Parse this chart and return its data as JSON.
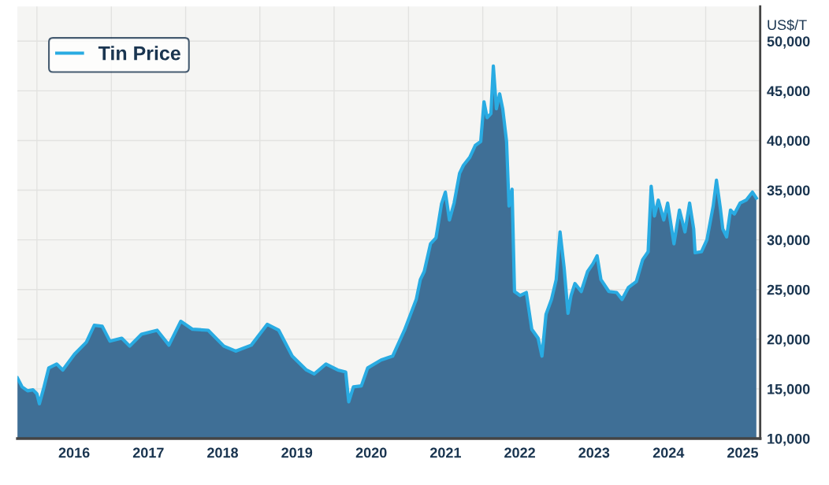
{
  "chart_data": {
    "type": "area",
    "x": [
      "2015-09-27",
      "2015-10-20",
      "2015-11-16",
      "2015-12-13",
      "2016-01-01",
      "2016-01-13",
      "2016-02-01",
      "2016-02-28",
      "2016-04-07",
      "2016-05-07",
      "2016-07-04",
      "2016-08-31",
      "2016-10-09",
      "2016-11-17",
      "2016-12-25",
      "2017-02-21",
      "2017-04-01",
      "2017-05-29",
      "2017-08-14",
      "2017-10-11",
      "2017-12-08",
      "2018-02-04",
      "2018-04-22",
      "2018-07-08",
      "2018-09-04",
      "2018-11-20",
      "2019-02-06",
      "2019-04-04",
      "2019-06-09",
      "2019-08-18",
      "2019-09-25",
      "2019-11-22",
      "2020-01-19",
      "2020-02-27",
      "2020-03-13",
      "2020-04-05",
      "2020-05-14",
      "2020-06-14",
      "2020-08-19",
      "2020-10-15",
      "2020-12-12",
      "2021-02-08",
      "2021-02-28",
      "2021-03-19",
      "2021-04-19",
      "2021-05-16",
      "2021-06-12",
      "2021-07-01",
      "2021-07-21",
      "2021-08-13",
      "2021-09-09",
      "2021-09-28",
      "2021-10-29",
      "2021-11-25",
      "2021-12-22",
      "2022-01-07",
      "2022-01-22",
      "2022-02-10",
      "2022-02-22",
      "2022-03-09",
      "2022-03-25",
      "2022-04-09",
      "2022-04-28",
      "2022-05-10",
      "2022-05-25",
      "2022-06-06",
      "2022-07-03",
      "2022-08-03",
      "2022-08-30",
      "2022-09-30",
      "2022-10-19",
      "2022-11-08",
      "2022-12-05",
      "2022-12-28",
      "2023-01-16",
      "2023-02-05",
      "2023-02-24",
      "2023-03-11",
      "2023-03-30",
      "2023-04-30",
      "2023-05-31",
      "2023-06-27",
      "2023-07-17",
      "2023-08-05",
      "2023-09-13",
      "2023-10-21",
      "2023-11-17",
      "2023-12-18",
      "2024-01-26",
      "2024-02-26",
      "2024-03-24",
      "2024-04-08",
      "2024-04-24",
      "2024-05-13",
      "2024-06-09",
      "2024-06-28",
      "2024-07-29",
      "2024-08-25",
      "2024-09-21",
      "2024-10-14",
      "2024-11-03",
      "2024-11-10",
      "2024-12-11",
      "2025-01-07",
      "2025-02-07",
      "2025-02-23",
      "2025-03-14",
      "2025-03-26",
      "2025-04-14",
      "2025-05-03",
      "2025-05-22",
      "2025-06-19",
      "2025-07-19",
      "2025-08-19",
      "2025-09-07"
    ],
    "series": [
      {
        "name": "Tin Price",
        "color": "#29abe2",
        "values": [
          16100,
          15200,
          14800,
          14900,
          14500,
          13500,
          14900,
          17100,
          17500,
          16900,
          18500,
          19700,
          21400,
          21300,
          19800,
          20100,
          19300,
          20500,
          20900,
          19400,
          21800,
          21000,
          20900,
          19300,
          18800,
          19400,
          21500,
          20900,
          18300,
          16900,
          16500,
          17500,
          16900,
          16700,
          13700,
          15200,
          15300,
          17100,
          17900,
          18300,
          20900,
          24000,
          26000,
          26800,
          29600,
          30200,
          33600,
          34800,
          32000,
          33700,
          36700,
          37500,
          38300,
          39500,
          39900,
          43900,
          42300,
          42700,
          47500,
          43200,
          44700,
          43200,
          39900,
          33400,
          35100,
          24800,
          24400,
          24700,
          21000,
          20100,
          18300,
          22500,
          24000,
          26000,
          30800,
          27200,
          22600,
          24400,
          25600,
          24800,
          26800,
          27600,
          28400,
          26000,
          24800,
          24700,
          24000,
          25200,
          25800,
          28000,
          28800,
          35400,
          32400,
          34000,
          32000,
          33700,
          29600,
          33000,
          30800,
          33700,
          31100,
          28700,
          28800,
          30000,
          33400,
          36000,
          33200,
          31100,
          30300,
          33000,
          32600,
          33700,
          34000,
          34800,
          34200
        ]
      }
    ],
    "ylabel": "US$/T",
    "xlim": [
      "2015-09-27",
      "2025-09-26"
    ],
    "xticks": [
      {
        "value": "2016-01-01",
        "label": null
      },
      {
        "value": "2016-07-02",
        "label": "2016"
      },
      {
        "value": "2017-01-01",
        "label": null
      },
      {
        "value": "2017-07-02",
        "label": "2017"
      },
      {
        "value": "2018-01-01",
        "label": null
      },
      {
        "value": "2018-07-02",
        "label": "2018"
      },
      {
        "value": "2019-01-01",
        "label": null
      },
      {
        "value": "2019-07-02",
        "label": "2019"
      },
      {
        "value": "2020-01-01",
        "label": null
      },
      {
        "value": "2020-07-02",
        "label": "2020"
      },
      {
        "value": "2021-01-01",
        "label": null
      },
      {
        "value": "2021-07-02",
        "label": "2021"
      },
      {
        "value": "2022-01-01",
        "label": null
      },
      {
        "value": "2022-07-02",
        "label": "2022"
      },
      {
        "value": "2023-01-01",
        "label": null
      },
      {
        "value": "2023-07-02",
        "label": "2023"
      },
      {
        "value": "2024-01-01",
        "label": null
      },
      {
        "value": "2024-07-02",
        "label": "2024"
      },
      {
        "value": "2025-01-01",
        "label": null
      },
      {
        "value": "2025-07-02",
        "label": "2025"
      }
    ],
    "ylim": [
      10000,
      53500
    ],
    "yticks": [
      {
        "value": 10000,
        "label": "10,000"
      },
      {
        "value": 15000,
        "label": "15,000"
      },
      {
        "value": 20000,
        "label": "20,000"
      },
      {
        "value": 25000,
        "label": "25,000"
      },
      {
        "value": 30000,
        "label": "30,000"
      },
      {
        "value": 35000,
        "label": "35,000"
      },
      {
        "value": 40000,
        "label": "40,000"
      },
      {
        "value": 45000,
        "label": "45,000"
      },
      {
        "value": 50000,
        "label": "50,000"
      }
    ],
    "grid": true,
    "legend": "top left"
  }
}
